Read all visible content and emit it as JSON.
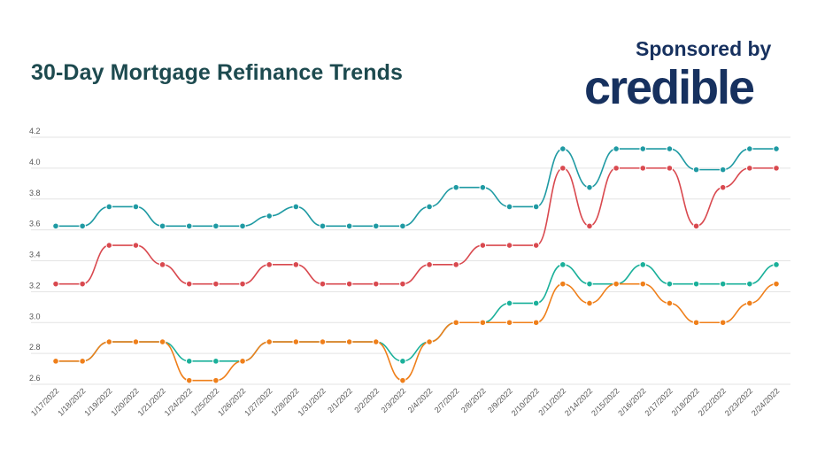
{
  "header": {
    "title": "30-Day Mortgage Refinance Trends",
    "sponsor_label": "Sponsored by",
    "brand_logo": "credible"
  },
  "chart_data": {
    "type": "line",
    "title": "30-Day Mortgage Refinance Trends",
    "xlabel": "",
    "ylabel": "",
    "ylim": [
      2.6,
      4.2
    ],
    "yticks": [
      "2.6",
      "2.8",
      "3.0",
      "3.2",
      "3.4",
      "3.6",
      "3.8",
      "4.0",
      "4.2"
    ],
    "grid": true,
    "legend": "none",
    "categories": [
      "1/17/2022",
      "1/18/2022",
      "1/19/2022",
      "1/20/2022",
      "1/21/2022",
      "1/24/2022",
      "1/25/2022",
      "1/26/2022",
      "1/27/2022",
      "1/28/2022",
      "1/31/2022",
      "2/1/2022",
      "2/2/2022",
      "2/3/2022",
      "2/4/2022",
      "2/7/2022",
      "2/8/2022",
      "2/9/2022",
      "2/10/2022",
      "2/11/2022",
      "2/14/2022",
      "2/15/2022",
      "2/16/2022",
      "2/17/2022",
      "2/18/2022",
      "2/22/2022",
      "2/23/2022",
      "2/24/2022"
    ],
    "series": [
      {
        "color": "#1f9aa3",
        "values": [
          3.625,
          3.625,
          3.75,
          3.75,
          3.625,
          3.625,
          3.625,
          3.625,
          3.69,
          3.75,
          3.625,
          3.625,
          3.625,
          3.625,
          3.75,
          3.875,
          3.875,
          3.75,
          3.75,
          4.125,
          3.875,
          4.125,
          4.125,
          4.125,
          3.99,
          3.99,
          4.125,
          4.125
        ]
      },
      {
        "color": "#d9494f",
        "values": [
          3.25,
          3.25,
          3.5,
          3.5,
          3.375,
          3.25,
          3.25,
          3.25,
          3.375,
          3.375,
          3.25,
          3.25,
          3.25,
          3.25,
          3.375,
          3.375,
          3.5,
          3.5,
          3.5,
          4.0,
          3.625,
          4.0,
          4.0,
          4.0,
          3.625,
          3.875,
          4.0,
          4.0
        ]
      },
      {
        "color": "#1ab09a",
        "values": [
          2.75,
          2.75,
          2.875,
          2.875,
          2.875,
          2.75,
          2.75,
          2.75,
          2.875,
          2.875,
          2.875,
          2.875,
          2.875,
          2.75,
          2.875,
          3.0,
          3.0,
          3.125,
          3.125,
          3.375,
          3.25,
          3.25,
          3.375,
          3.25,
          3.25,
          3.25,
          3.25,
          3.375
        ]
      },
      {
        "color": "#ef7f1a",
        "values": [
          2.75,
          2.75,
          2.875,
          2.875,
          2.875,
          2.625,
          2.625,
          2.75,
          2.875,
          2.875,
          2.875,
          2.875,
          2.875,
          2.625,
          2.875,
          3.0,
          3.0,
          3.0,
          3.0,
          3.25,
          3.125,
          3.25,
          3.25,
          3.125,
          3.0,
          3.0,
          3.125,
          3.25
        ]
      }
    ]
  }
}
